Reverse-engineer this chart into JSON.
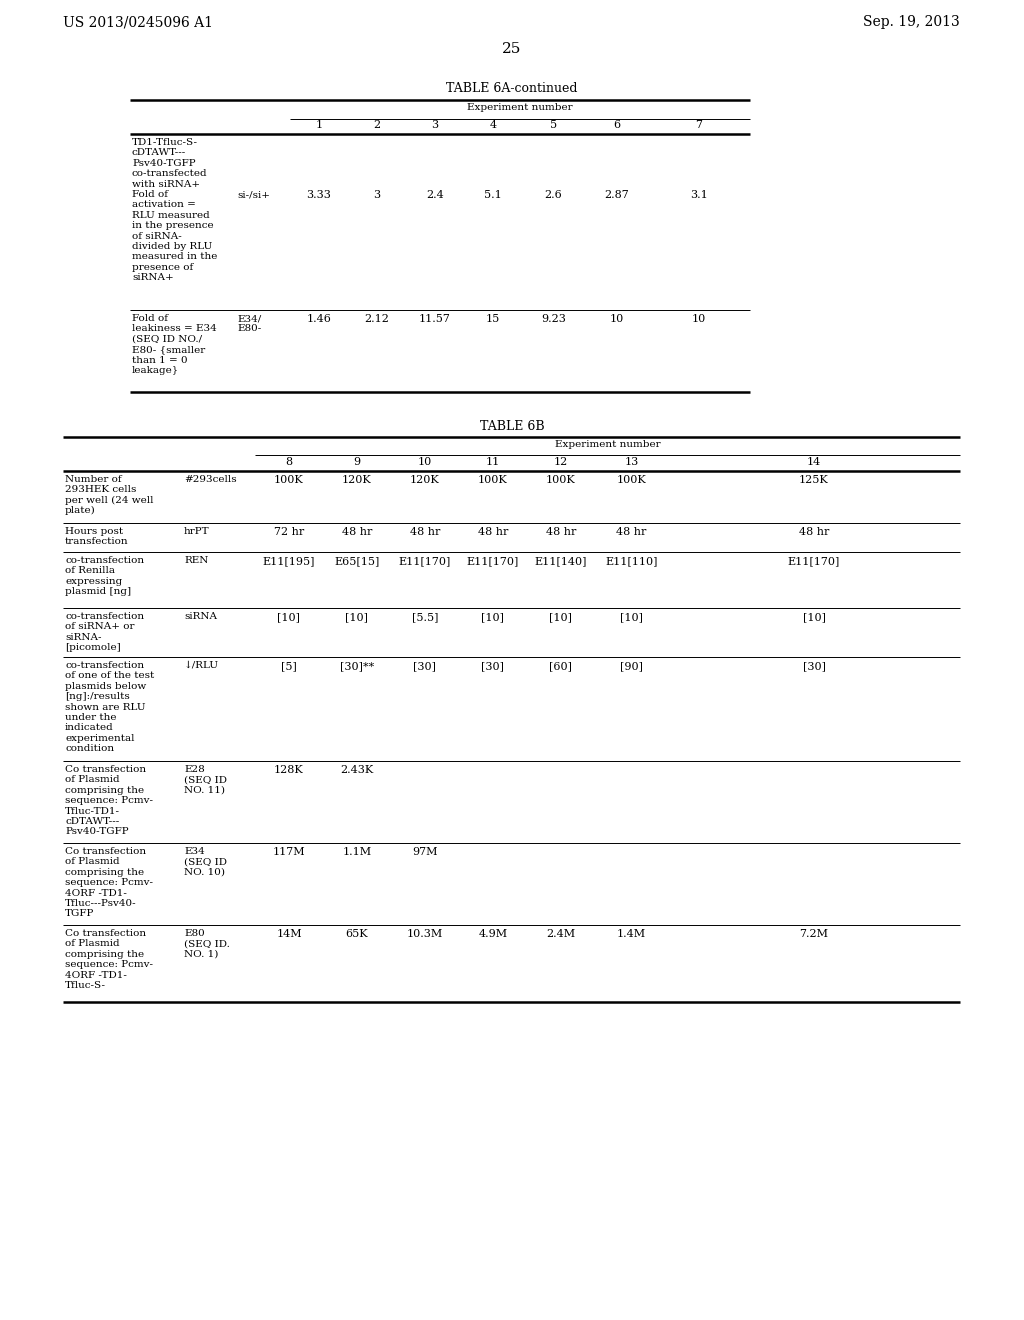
{
  "background_color": "#ffffff",
  "page_number": "25",
  "patent_left": "US 2013/0245096 A1",
  "patent_right": "Sep. 19, 2013",
  "table6a_title": "TABLE 6A-continued",
  "table6b_title": "TABLE 6B",
  "exp_number_label": "Experiment number",
  "table6a": {
    "row1_col1": "TD1-Tfluc-S-\ncDTAWT---\nPsv40-TGFP\nco-transfected\nwith siRNA+\nFold of\nactivation =\nRLU measured\nin the presence\nof siRNA-\ndivided by RLU\nmeasured in the\npresence of\nsiRNA+",
    "row1_col2": "si-/si+",
    "row1_data": [
      "3.33",
      "3",
      "2.4",
      "5.1",
      "2.6",
      "2.87",
      "3.1"
    ],
    "row2_col1": "Fold of\nleakiness = E34\n(SEQ ID NO./\nE80- {smaller\nthan 1 = 0\nleakage}",
    "row2_col2": "E34/\nE80-",
    "row2_data": [
      "1.46",
      "2.12",
      "11.57",
      "15",
      "9.23",
      "10",
      "10"
    ]
  },
  "table6b": {
    "rows": [
      {
        "col1": "Number of\n293HEK cells\nper well (24 well\nplate)",
        "col2": "#293cells",
        "data": [
          "100K",
          "120K",
          "120K",
          "100K",
          "100K",
          "100K",
          "125K"
        ]
      },
      {
        "col1": "Hours post\ntransfection",
        "col2": "hrPT",
        "data": [
          "72 hr",
          "48 hr",
          "48 hr",
          "48 hr",
          "48 hr",
          "48 hr",
          "48 hr"
        ]
      },
      {
        "col1": "co-transfection\nof Renilla\nexpressing\nplasmid [ng]",
        "col2": "REN",
        "data": [
          "E11[195]",
          "E65[15]",
          "E11[170]",
          "E11[170]",
          "E11[140]",
          "E11[110]",
          "E11[170]"
        ]
      },
      {
        "col1": "co-transfection\nof siRNA+ or\nsiRNA-\n[picomole]",
        "col2": "siRNA",
        "data": [
          "[10]",
          "[10]",
          "[5.5]",
          "[10]",
          "[10]",
          "[10]",
          "[10]"
        ]
      },
      {
        "col1": "co-transfection\nof one of the test\nplasmids below\n[ng]:/results\nshown are RLU\nunder the\nindicated\nexperimental\ncondition",
        "col2": "↓/RLU",
        "data": [
          "[5]",
          "[30]**",
          "[30]",
          "[30]",
          "[60]",
          "[90]",
          "[30]"
        ]
      },
      {
        "col1": "Co transfection\nof Plasmid\ncomprising the\nsequence: Pcmv-\nTfluc-TD1-\ncDTAWT---\nPsv40-TGFP",
        "col2": "E28\n(SEQ ID\nNO. 11)",
        "data": [
          "128K",
          "2.43K",
          "",
          "",
          "",
          "",
          ""
        ]
      },
      {
        "col1": "Co transfection\nof Plasmid\ncomprising the\nsequence: Pcmv-\n4ORF -TD1-\nTfluc---Psv40-\nTGFP",
        "col2": "E34\n(SEQ ID\nNO. 10)",
        "data": [
          "117M",
          "1.1M",
          "97M",
          "",
          "",
          "",
          ""
        ]
      },
      {
        "col1": "Co transfection\nof Plasmid\ncomprising the\nsequence: Pcmv-\n4ORF -TD1-\nTfluc-S-",
        "col2": "E80\n(SEQ ID.\nNO. 1)",
        "data": [
          "14M",
          "65K",
          "10.3M",
          "4.9M",
          "2.4M",
          "1.4M",
          "7.2M"
        ]
      }
    ]
  }
}
